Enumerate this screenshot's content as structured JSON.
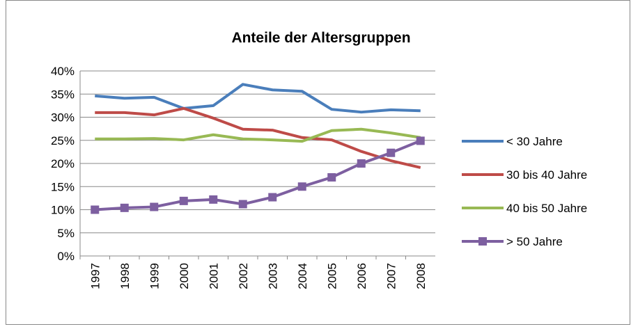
{
  "chart_data": {
    "type": "line",
    "title": "Anteile der Altersgruppen",
    "categories": [
      "1997",
      "1998",
      "1999",
      "2000",
      "2001",
      "2002",
      "2003",
      "2004",
      "2005",
      "2006",
      "2007",
      "2008"
    ],
    "series": [
      {
        "name": "< 30 Jahre",
        "color": "#4a7ebb",
        "values": [
          34.6,
          34.1,
          34.3,
          31.9,
          32.5,
          37.1,
          35.9,
          35.6,
          31.7,
          31.1,
          31.6,
          31.4
        ]
      },
      {
        "name": "30 bis 40 Jahre",
        "color": "#be4b48",
        "values": [
          31.0,
          31.0,
          30.5,
          31.9,
          29.8,
          27.4,
          27.2,
          25.6,
          25.1,
          22.6,
          20.6,
          19.1
        ]
      },
      {
        "name": "40 bis 50 Jahre",
        "color": "#98b954",
        "values": [
          25.3,
          25.3,
          25.4,
          25.1,
          26.2,
          25.3,
          25.1,
          24.8,
          27.1,
          27.4,
          26.6,
          25.6
        ]
      },
      {
        "name": "> 50 Jahre",
        "color": "#7d5fa0",
        "marker": "square",
        "values": [
          10.0,
          10.4,
          10.6,
          11.9,
          12.2,
          11.2,
          12.7,
          15.0,
          17.0,
          20.0,
          22.3,
          24.9
        ]
      }
    ],
    "ylim": [
      0,
      40
    ],
    "yticks": [
      {
        "value": 0,
        "label": "0%"
      },
      {
        "value": 5,
        "label": "5%"
      },
      {
        "value": 10,
        "label": "10%"
      },
      {
        "value": 15,
        "label": "15%"
      },
      {
        "value": 20,
        "label": "20%"
      },
      {
        "value": 25,
        "label": "25%"
      },
      {
        "value": 30,
        "label": "30%"
      },
      {
        "value": 35,
        "label": "35%"
      },
      {
        "value": 40,
        "label": "40%"
      }
    ],
    "grid": true,
    "legend": "right"
  }
}
